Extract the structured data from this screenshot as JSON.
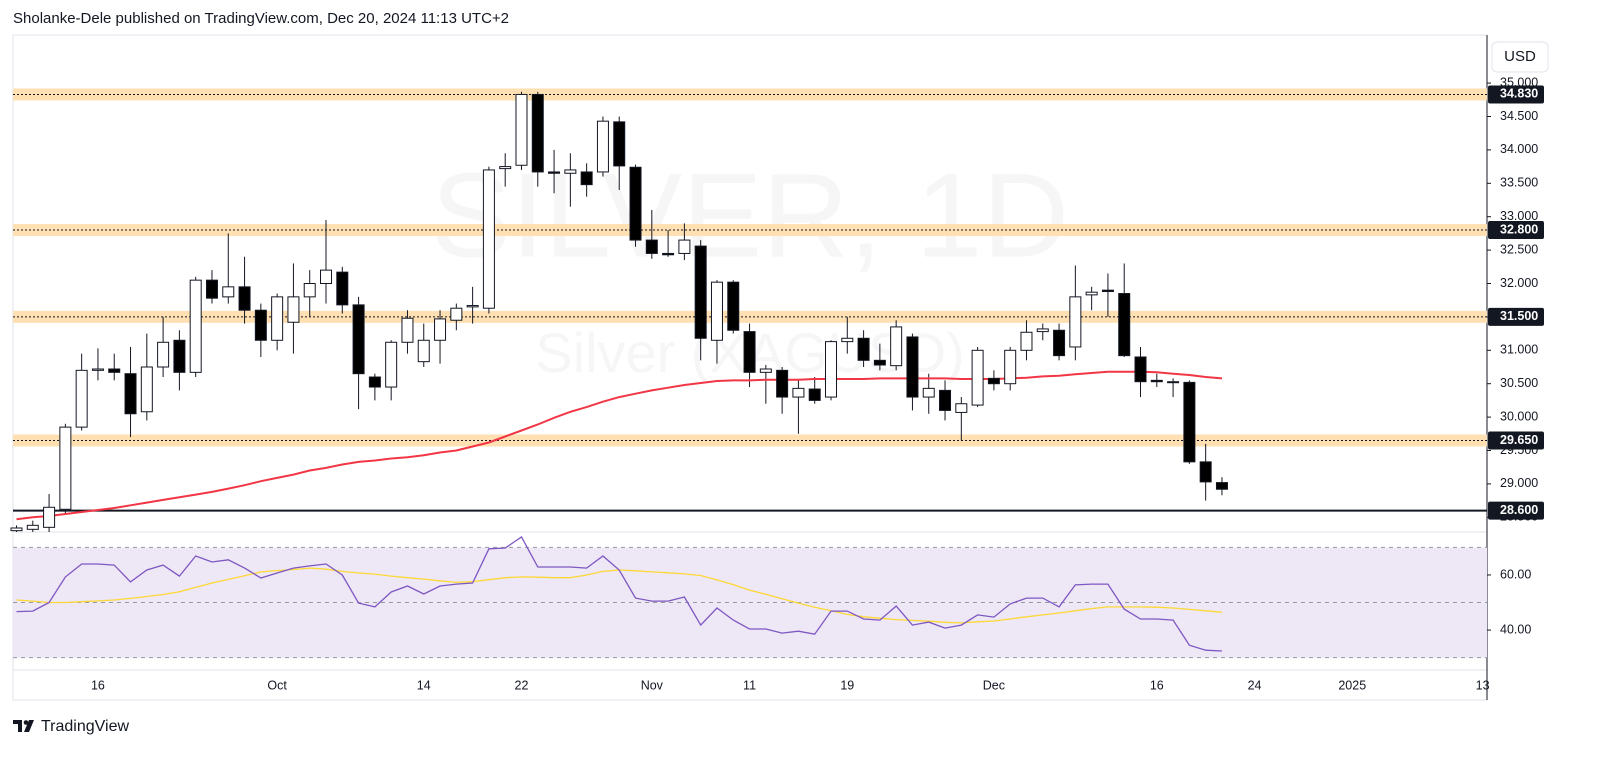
{
  "header": {
    "text": "Sholanke-Dele published on TradingView.com, Dec 20, 2024 11:13 UTC+2"
  },
  "footer": {
    "brand": "TradingView"
  },
  "chart_data": {
    "type": "candlestick",
    "title": "SILVER, 1D",
    "subtitle": "Silver (XAGUSD)",
    "currency": "USD",
    "categories": [
      null,
      null,
      null,
      null,
      null,
      "16",
      null,
      null,
      null,
      null,
      null,
      null,
      null,
      null,
      null,
      null,
      "Oct",
      null,
      null,
      null,
      null,
      null,
      null,
      null,
      null,
      "14",
      null,
      null,
      null,
      null,
      null,
      "22",
      null,
      null,
      null,
      null,
      null,
      null,
      null,
      "Nov",
      null,
      null,
      null,
      null,
      null,
      "11",
      null,
      null,
      null,
      null,
      null,
      "19",
      null,
      null,
      null,
      null,
      null,
      null,
      null,
      null,
      "Dec",
      null,
      null,
      null,
      null,
      null,
      null,
      null,
      null,
      null,
      "16",
      null,
      null,
      null,
      null,
      null,
      "24",
      null,
      null,
      null,
      null,
      null,
      "2025",
      null,
      null,
      null,
      null,
      null,
      null,
      null,
      "13"
    ],
    "open": [
      28.3,
      28.32,
      28.35,
      28.62,
      29.85,
      30.7,
      30.72,
      30.65,
      30.08,
      30.75,
      31.15,
      30.67,
      32.05,
      31.8,
      31.95,
      31.6,
      31.15,
      31.42,
      31.8,
      32.0,
      32.17,
      31.68,
      30.6,
      30.45,
      31.12,
      30.83,
      31.15,
      31.45,
      31.65,
      31.63,
      33.72,
      33.77,
      34.83,
      33.67,
      33.65,
      33.67,
      33.67,
      34.42,
      33.74,
      32.65,
      32.45,
      32.45,
      32.56,
      31.15,
      32.02,
      31.28,
      30.67,
      30.7,
      30.3,
      30.42,
      30.3,
      31.13,
      31.18,
      30.85,
      30.77,
      31.2,
      30.3,
      30.4,
      30.07,
      30.18,
      30.58,
      30.5,
      31.0,
      31.28,
      31.3,
      31.05,
      31.83,
      31.9,
      31.85,
      30.9,
      30.55,
      30.53,
      30.52,
      29.33,
      29.02,
      null,
      null,
      null,
      null,
      null,
      null,
      null,
      null,
      null,
      null,
      null,
      null,
      null,
      null,
      null,
      null
    ],
    "high": [
      28.38,
      28.45,
      28.85,
      29.9,
      30.95,
      31.03,
      30.95,
      31.05,
      31.25,
      31.5,
      31.3,
      32.1,
      32.2,
      32.75,
      32.4,
      31.7,
      31.85,
      32.3,
      32.2,
      32.95,
      32.25,
      31.8,
      30.65,
      31.15,
      31.6,
      31.4,
      31.6,
      31.7,
      31.95,
      33.75,
      33.95,
      34.87,
      34.87,
      34.0,
      33.95,
      33.8,
      34.5,
      34.5,
      33.78,
      33.1,
      32.8,
      32.9,
      32.65,
      32.05,
      32.05,
      31.4,
      30.78,
      30.75,
      30.55,
      30.6,
      31.15,
      31.5,
      31.3,
      31.1,
      31.45,
      31.25,
      30.65,
      30.55,
      30.3,
      31.05,
      30.7,
      31.05,
      31.45,
      31.4,
      31.4,
      32.27,
      31.95,
      32.15,
      32.3,
      31.05,
      30.65,
      30.58,
      30.55,
      29.6,
      29.1,
      null,
      null,
      null,
      null,
      null,
      null,
      null,
      null,
      null,
      null,
      null,
      null,
      null,
      null,
      null,
      null
    ],
    "low": [
      28.28,
      28.28,
      28.28,
      28.55,
      29.8,
      30.55,
      30.55,
      29.7,
      29.95,
      30.6,
      30.4,
      30.6,
      31.7,
      31.7,
      31.4,
      30.9,
      31.0,
      30.95,
      31.5,
      31.7,
      31.55,
      30.12,
      30.25,
      30.25,
      30.95,
      30.75,
      30.8,
      31.3,
      31.4,
      31.55,
      33.45,
      33.7,
      33.45,
      33.35,
      33.15,
      33.3,
      33.6,
      33.4,
      32.55,
      32.37,
      32.4,
      32.35,
      30.85,
      30.8,
      31.25,
      30.45,
      30.2,
      30.05,
      29.75,
      30.2,
      30.25,
      30.95,
      30.75,
      30.7,
      30.7,
      30.1,
      30.05,
      29.95,
      29.65,
      30.15,
      30.4,
      30.4,
      30.85,
      31.15,
      30.85,
      30.85,
      31.6,
      31.5,
      30.9,
      30.3,
      30.45,
      30.3,
      29.3,
      28.75,
      28.83,
      null,
      null,
      null,
      null,
      null,
      null,
      null,
      null,
      null,
      null,
      null,
      null,
      null,
      null,
      null,
      null
    ],
    "close": [
      28.34,
      28.38,
      28.65,
      29.85,
      30.7,
      30.72,
      30.67,
      30.05,
      30.75,
      31.12,
      30.67,
      32.05,
      31.78,
      31.95,
      31.6,
      31.15,
      31.8,
      31.8,
      32.0,
      32.2,
      31.68,
      30.65,
      30.45,
      31.12,
      31.48,
      31.15,
      31.47,
      31.63,
      31.67,
      33.7,
      33.75,
      34.83,
      33.67,
      33.65,
      33.7,
      33.48,
      34.43,
      33.76,
      32.65,
      32.45,
      32.43,
      32.65,
      31.18,
      32.02,
      31.3,
      30.67,
      30.72,
      30.3,
      30.43,
      30.25,
      31.13,
      31.18,
      30.85,
      30.78,
      31.35,
      30.3,
      30.43,
      30.1,
      30.2,
      31.0,
      30.5,
      31.0,
      31.27,
      31.32,
      30.92,
      31.8,
      31.87,
      31.88,
      30.92,
      30.53,
      30.53,
      30.52,
      29.33,
      29.03,
      28.92,
      null,
      null,
      null,
      null,
      null,
      null,
      null,
      null,
      null,
      null,
      null,
      null,
      null,
      null,
      null,
      null
    ],
    "up_color": "#ffffff",
    "down_color": "#000000",
    "overlays": [
      {
        "color": "#f23645",
        "values": [
          28.47,
          28.5,
          28.52,
          28.55,
          28.58,
          28.61,
          28.64,
          28.68,
          28.72,
          28.76,
          28.8,
          28.84,
          28.88,
          28.93,
          28.98,
          29.04,
          29.09,
          29.14,
          29.2,
          29.24,
          29.29,
          29.33,
          29.35,
          29.38,
          29.4,
          29.43,
          29.47,
          29.5,
          29.56,
          29.62,
          29.71,
          29.8,
          29.89,
          29.99,
          30.08,
          30.15,
          30.23,
          30.3,
          30.35,
          30.4,
          30.44,
          30.48,
          30.51,
          30.54,
          30.55,
          30.55,
          30.56,
          30.56,
          30.56,
          30.57,
          30.57,
          30.57,
          30.57,
          30.58,
          30.58,
          30.58,
          30.58,
          30.58,
          30.57,
          30.57,
          30.57,
          30.58,
          30.59,
          30.61,
          30.62,
          30.64,
          30.66,
          30.68,
          30.68,
          30.68,
          30.67,
          30.65,
          30.63,
          30.6,
          30.58,
          null,
          null,
          null,
          null,
          null,
          null,
          null,
          null,
          null,
          null,
          null,
          null,
          null,
          null,
          null,
          null
        ]
      }
    ],
    "levels": [
      {
        "value": 34.83,
        "label": "34.830",
        "style": "zone"
      },
      {
        "value": 32.8,
        "label": "32.800",
        "style": "zone"
      },
      {
        "value": 31.5,
        "label": "31.500",
        "style": "zone"
      },
      {
        "value": 29.65,
        "label": "29.650",
        "style": "zone"
      },
      {
        "value": 28.6,
        "label": "28.600",
        "style": "line"
      }
    ],
    "zone_color": "#ffe0b2",
    "ylim": [
      28.28,
      35.72
    ],
    "yticks": [
      {
        "value": 28.5,
        "label": "28.500"
      },
      {
        "value": 29,
        "label": "29.000"
      },
      {
        "value": 29.5,
        "label": "29.500"
      },
      {
        "value": 30,
        "label": "30.000"
      },
      {
        "value": 30.5,
        "label": "30.500"
      },
      {
        "value": 31,
        "label": "31.000"
      },
      {
        "value": 31.5,
        "label": "31.500"
      },
      {
        "value": 32,
        "label": "32.000"
      },
      {
        "value": 32.5,
        "label": "32.500"
      },
      {
        "value": 33,
        "label": "33.000"
      },
      {
        "value": 33.5,
        "label": "33.500"
      },
      {
        "value": 34,
        "label": "34.000"
      },
      {
        "value": 34.5,
        "label": "34.500"
      },
      {
        "value": 35,
        "label": "35.000"
      }
    ],
    "rsi": {
      "type": "line",
      "ylim": [
        25.5,
        75.6
      ],
      "yticks": [
        {
          "value": 60,
          "label": "60.00"
        },
        {
          "value": 40,
          "label": "40.00"
        }
      ],
      "band": [
        30,
        70
      ],
      "middle": 50,
      "band_color": "#ede7f6",
      "series": [
        {
          "color": "#7e57c2",
          "values": [
            46.7,
            46.9,
            50.0,
            59.3,
            64.0,
            64.0,
            63.6,
            57.5,
            61.8,
            63.6,
            59.6,
            66.9,
            64.7,
            65.5,
            62.5,
            58.9,
            60.7,
            62.5,
            63.3,
            64.0,
            60.0,
            49.8,
            48.4,
            53.8,
            56.0,
            53.1,
            56.0,
            56.7,
            57.1,
            69.5,
            69.8,
            73.8,
            62.9,
            62.9,
            62.9,
            62.5,
            66.9,
            61.8,
            51.6,
            50.5,
            50.5,
            52.0,
            41.8,
            48.0,
            43.6,
            40.4,
            40.4,
            38.9,
            39.6,
            38.5,
            46.9,
            46.9,
            44.0,
            43.6,
            48.7,
            41.8,
            42.9,
            40.7,
            41.8,
            45.5,
            44.7,
            49.5,
            51.6,
            51.6,
            48.4,
            56.4,
            56.7,
            56.7,
            47.6,
            44.0,
            44.0,
            43.6,
            34.5,
            32.7,
            32.4,
            null,
            null,
            null,
            null,
            null,
            null,
            null,
            null,
            null,
            null,
            null,
            null,
            null,
            null,
            null,
            null
          ]
        },
        {
          "color": "#fdd835",
          "values": [
            50.9,
            50.5,
            50.0,
            50.0,
            50.3,
            50.6,
            50.9,
            51.5,
            52.2,
            52.9,
            53.9,
            55.5,
            57.1,
            58.4,
            59.7,
            61.1,
            61.6,
            62.0,
            62.5,
            62.1,
            61.3,
            60.7,
            60.3,
            59.6,
            59.0,
            58.5,
            57.9,
            57.3,
            57.6,
            58.3,
            59.0,
            59.3,
            59.2,
            59.0,
            59.0,
            60.0,
            61.3,
            61.8,
            61.5,
            61.1,
            60.8,
            60.4,
            59.8,
            58.2,
            56.5,
            54.5,
            53.0,
            51.4,
            49.8,
            48.3,
            47.0,
            45.7,
            44.8,
            44.3,
            43.8,
            43.5,
            43.2,
            42.8,
            42.6,
            43.0,
            43.3,
            44.0,
            44.8,
            45.5,
            46.2,
            47.0,
            47.8,
            48.4,
            48.4,
            48.4,
            48.3,
            48.0,
            47.5,
            47.0,
            46.5,
            null,
            null,
            null,
            null,
            null,
            null,
            null,
            null,
            null,
            null,
            null,
            null,
            null,
            null,
            null,
            null
          ]
        }
      ]
    }
  }
}
